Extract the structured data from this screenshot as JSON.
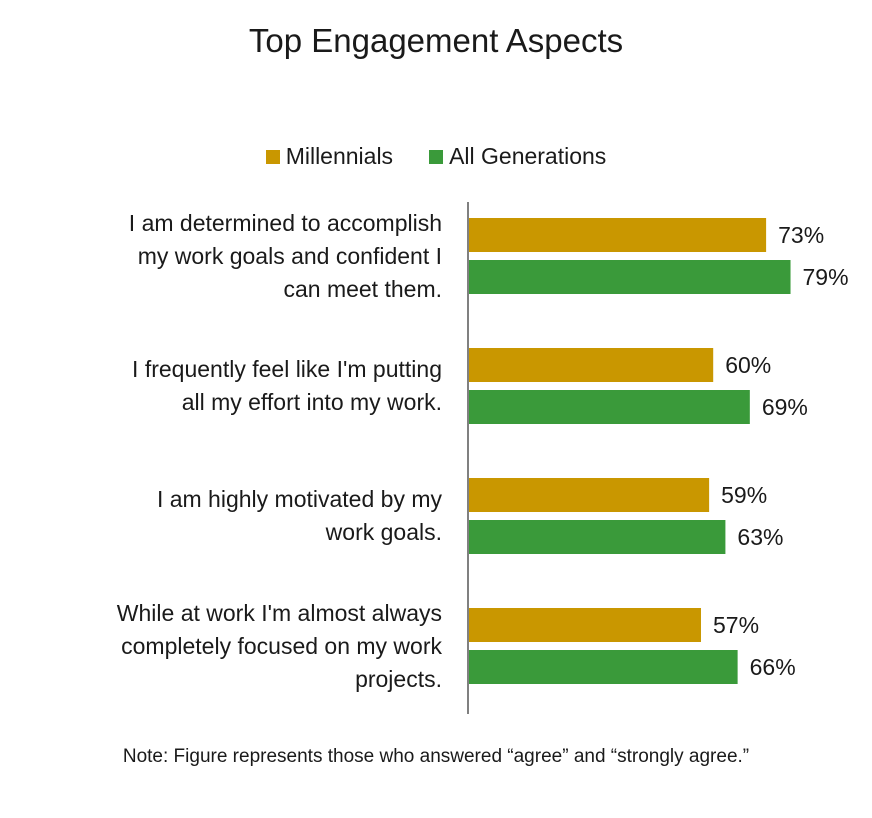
{
  "chart_data": {
    "type": "bar",
    "orientation": "horizontal",
    "title": "Top Engagement Aspects",
    "categories": [
      "I am determined to accomplish my work goals and confident I can meet them.",
      "I frequently feel like I'm putting all my effort into my work.",
      "I am highly motivated by my work goals.",
      "While at work I'm almost always completely focused on my work projects."
    ],
    "series": [
      {
        "name": "Millennials",
        "color": "#C99700",
        "values": [
          73,
          60,
          59,
          57
        ],
        "labels": [
          "73%",
          "60%",
          "59%",
          "57%"
        ]
      },
      {
        "name": "All Generations",
        "color": "#3A9A3A",
        "values": [
          79,
          69,
          63,
          66
        ],
        "labels": [
          "79%",
          "69%",
          "63%",
          "66%"
        ]
      }
    ],
    "xlim": [
      0,
      100
    ],
    "grid": false,
    "legend": "top"
  },
  "category_lines": [
    [
      "I am determined to accomplish",
      "my work goals and confident I",
      "can meet them."
    ],
    [
      "I frequently feel like I'm putting",
      "all my effort into my work."
    ],
    [
      "I am highly motivated by my",
      "work goals."
    ],
    [
      "While at work I'm almost always",
      "completely focused on my work",
      "projects."
    ]
  ],
  "note": "Note: Figure represents those who answered “agree” and “strongly agree.”"
}
